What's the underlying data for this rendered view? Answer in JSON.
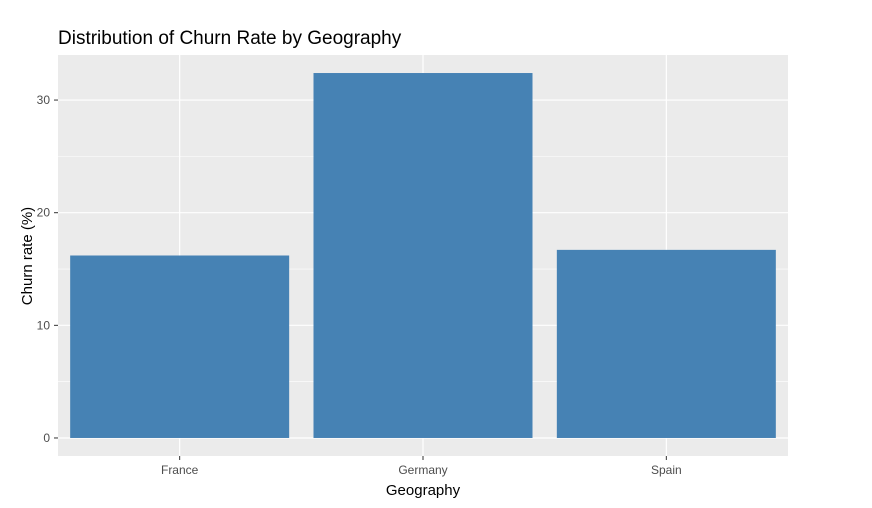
{
  "chart_data": {
    "type": "bar",
    "title": "Distribution of Churn Rate by Geography",
    "xlabel": "Geography",
    "ylabel": "Churn rate (%)",
    "categories": [
      "France",
      "Germany",
      "Spain"
    ],
    "values": [
      16.2,
      32.4,
      16.7
    ],
    "ylim": [
      -1.6,
      34.0
    ],
    "yticks": [
      0,
      10,
      20,
      30
    ],
    "ytick_labels": [
      "0",
      "10",
      "20",
      "30"
    ],
    "grid": true,
    "legend": "none",
    "colors": {
      "bar": "#4682b4",
      "panel": "#ebebeb",
      "grid_major": "#ffffff",
      "text": "#000000",
      "tick_text": "#4d4d4d",
      "tick_mark": "#333333"
    }
  }
}
